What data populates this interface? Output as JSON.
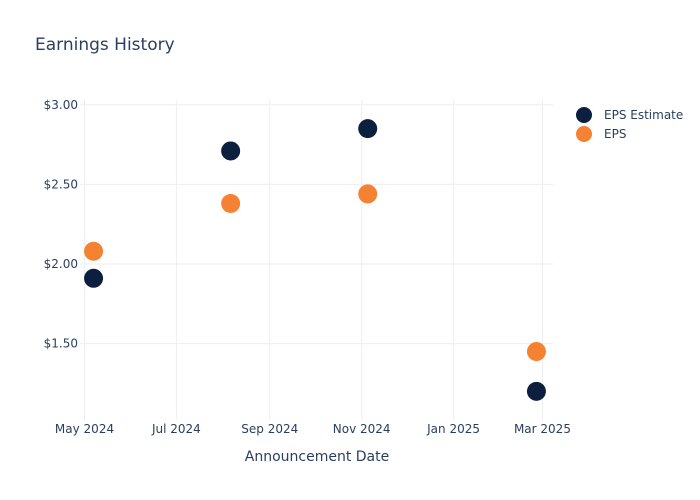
{
  "chart_data": {
    "type": "scatter",
    "title": "Earnings History",
    "xlabel": "Announcement Date",
    "ylabel": "",
    "x_ticks": [
      "May 2024",
      "Jul 2024",
      "Sep 2024",
      "Nov 2024",
      "Jan 2025",
      "Mar 2025"
    ],
    "y_ticks": [
      "$1.50",
      "$2.00",
      "$2.50",
      "$3.00"
    ],
    "x_range": [
      "2024-04-28",
      "2025-03-08"
    ],
    "ylim": [
      1.02,
      3.03
    ],
    "grid": true,
    "legend_position": "top-right",
    "series": [
      {
        "name": "EPS Estimate",
        "color": "#0d1f3f",
        "points": [
          {
            "x": "2024-05-07",
            "y": 1.91
          },
          {
            "x": "2024-08-06",
            "y": 2.71
          },
          {
            "x": "2024-11-05",
            "y": 2.85
          },
          {
            "x": "2025-02-25",
            "y": 1.2
          }
        ]
      },
      {
        "name": "EPS",
        "color": "#f58233",
        "points": [
          {
            "x": "2024-05-07",
            "y": 2.08
          },
          {
            "x": "2024-08-06",
            "y": 2.38
          },
          {
            "x": "2024-11-05",
            "y": 2.44
          },
          {
            "x": "2025-02-25",
            "y": 1.45
          }
        ]
      }
    ]
  }
}
